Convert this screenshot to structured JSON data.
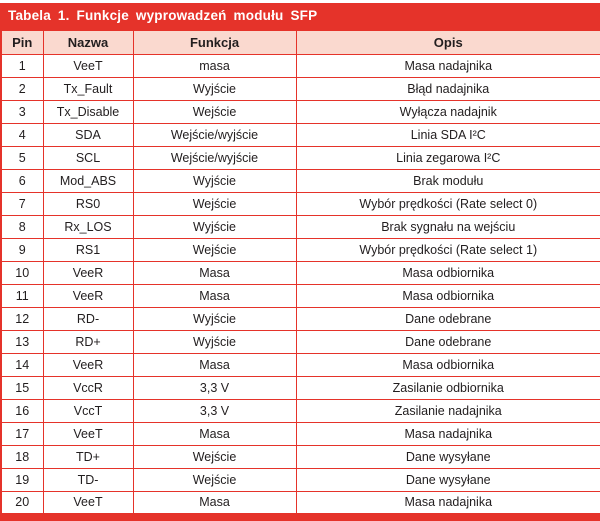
{
  "title": "Tabela 1. Funkcje wyprowadzeń modułu SFP",
  "colors": {
    "accent_red": "#e5332a",
    "header_pink": "#fad9cf",
    "text_dark": "#221e1f"
  },
  "chart_data": {
    "type": "table",
    "title": "Tabela 1. Funkcje wyprowadzeń modułu SFP",
    "columns": [
      "Pin",
      "Nazwa",
      "Funkcja",
      "Opis"
    ],
    "rows": [
      [
        "1",
        "VeeT",
        "masa",
        "Masa nadajnika"
      ],
      [
        "2",
        "Tx_Fault",
        "Wyjście",
        "Błąd nadajnika"
      ],
      [
        "3",
        "Tx_Disable",
        "Wejście",
        "Wyłącza nadajnik"
      ],
      [
        "4",
        "SDA",
        "Wejście/wyjście",
        "Linia SDA I²C"
      ],
      [
        "5",
        "SCL",
        "Wejście/wyjście",
        "Linia zegarowa I²C"
      ],
      [
        "6",
        "Mod_ABS",
        "Wyjście",
        "Brak modułu"
      ],
      [
        "7",
        "RS0",
        "Wejście",
        "Wybór prędkości (Rate select 0)"
      ],
      [
        "8",
        "Rx_LOS",
        "Wyjście",
        "Brak sygnału na wejściu"
      ],
      [
        "9",
        "RS1",
        "Wejście",
        "Wybór prędkości (Rate select 1)"
      ],
      [
        "10",
        "VeeR",
        "Masa",
        "Masa odbiornika"
      ],
      [
        "11",
        "VeeR",
        "Masa",
        "Masa odbiornika"
      ],
      [
        "12",
        "RD-",
        "Wyjście",
        "Dane odebrane"
      ],
      [
        "13",
        "RD+",
        "Wyjście",
        "Dane odebrane"
      ],
      [
        "14",
        "VeeR",
        "Masa",
        "Masa odbiornika"
      ],
      [
        "15",
        "VccR",
        "3,3 V",
        "Zasilanie odbiornika"
      ],
      [
        "16",
        "VccT",
        "3,3 V",
        "Zasilanie nadajnika"
      ],
      [
        "17",
        "VeeT",
        "Masa",
        "Masa nadajnika"
      ],
      [
        "18",
        "TD+",
        "Wejście",
        "Dane wysyłane"
      ],
      [
        "19",
        "TD-",
        "Wejście",
        "Dane wysyłane"
      ],
      [
        "20",
        "VeeT",
        "Masa",
        "Masa nadajnika"
      ]
    ]
  }
}
